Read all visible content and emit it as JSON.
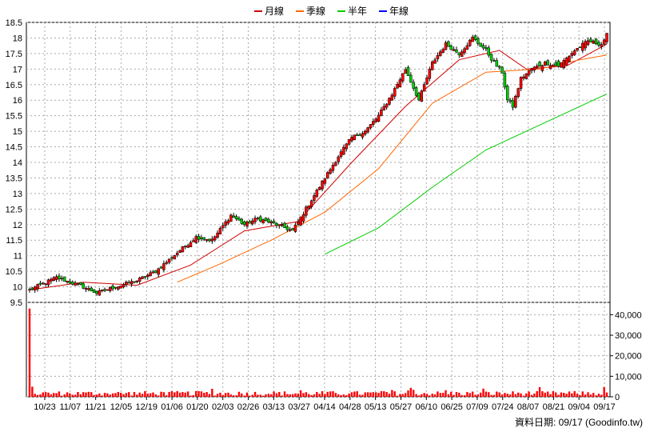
{
  "chart_data": {
    "type": "candlestick-with-volume",
    "legend": [
      {
        "label": "月線",
        "color": "#d00000"
      },
      {
        "label": "季線",
        "color": "#ff6600"
      },
      {
        "label": "半年",
        "color": "#00cc00"
      },
      {
        "label": "年線",
        "color": "#0000ff"
      }
    ],
    "price_axis": {
      "ticks": [
        9.5,
        10,
        10.5,
        11,
        11.5,
        12,
        12.5,
        13,
        13.5,
        14,
        14.5,
        15,
        15.5,
        16,
        16.5,
        17,
        17.5,
        18,
        18.5
      ],
      "range": [
        9.5,
        18.5
      ]
    },
    "volume_axis": {
      "tick_labels": [
        "0",
        "10,000",
        "20,000",
        "30,000",
        "40,000"
      ],
      "ticks": [
        0,
        10000,
        20000,
        30000,
        40000
      ],
      "range": [
        0,
        46000
      ]
    },
    "x_labels": [
      "10/23",
      "11/07",
      "11/21",
      "12/05",
      "12/19",
      "01/06",
      "01/20",
      "02/03",
      "02/26",
      "03/13",
      "03/27",
      "04/14",
      "04/28",
      "05/13",
      "05/27",
      "06/10",
      "06/25",
      "07/09",
      "07/24",
      "08/07",
      "08/21",
      "09/04",
      "09/17"
    ],
    "close_anchors": [
      [
        0,
        9.9
      ],
      [
        10,
        10.3
      ],
      [
        20,
        10.0
      ],
      [
        25,
        9.8
      ],
      [
        30,
        9.95
      ],
      [
        40,
        10.2
      ],
      [
        47,
        10.5
      ],
      [
        55,
        11.1
      ],
      [
        62,
        11.6
      ],
      [
        68,
        11.5
      ],
      [
        75,
        12.3
      ],
      [
        80,
        12.0
      ],
      [
        85,
        12.2
      ],
      [
        92,
        12.0
      ],
      [
        98,
        11.8
      ],
      [
        105,
        12.8
      ],
      [
        110,
        13.5
      ],
      [
        115,
        14.2
      ],
      [
        120,
        14.8
      ],
      [
        125,
        15.0
      ],
      [
        130,
        15.5
      ],
      [
        135,
        16.2
      ],
      [
        140,
        17.0
      ],
      [
        145,
        16.0
      ],
      [
        150,
        17.2
      ],
      [
        155,
        17.8
      ],
      [
        160,
        17.5
      ],
      [
        165,
        18.0
      ],
      [
        170,
        17.6
      ],
      [
        173,
        17.2
      ],
      [
        176,
        16.9
      ],
      [
        178,
        16.0
      ],
      [
        180,
        15.8
      ],
      [
        183,
        16.7
      ],
      [
        187,
        17.0
      ],
      [
        192,
        17.2
      ],
      [
        197,
        17.1
      ],
      [
        203,
        17.6
      ],
      [
        208,
        17.9
      ],
      [
        213,
        17.8
      ],
      [
        215,
        18.1
      ]
    ],
    "series": [
      {
        "name": "月線",
        "x": [
          0,
          20,
          40,
          60,
          80,
          100,
          120,
          140,
          160,
          175,
          185,
          200,
          215
        ],
        "values": [
          9.9,
          10.15,
          10.05,
          10.7,
          11.8,
          12.1,
          14.0,
          15.8,
          17.3,
          17.6,
          17.0,
          17.1,
          17.8
        ]
      },
      {
        "name": "季線",
        "x": [
          55,
          70,
          90,
          110,
          130,
          150,
          170,
          190,
          205,
          215
        ],
        "values": [
          10.15,
          10.7,
          11.5,
          12.4,
          13.8,
          15.9,
          16.9,
          17.0,
          17.3,
          17.45
        ]
      },
      {
        "name": "半年",
        "x": [
          110,
          130,
          150,
          170,
          190,
          215
        ],
        "values": [
          11.05,
          11.9,
          13.2,
          14.4,
          15.2,
          16.2
        ]
      }
    ],
    "volume": {
      "first_day": 43000,
      "typical_range": [
        500,
        2800
      ]
    }
  },
  "footer": {
    "source": "資料日期: 09/17  (Goodinfo.tw)"
  }
}
